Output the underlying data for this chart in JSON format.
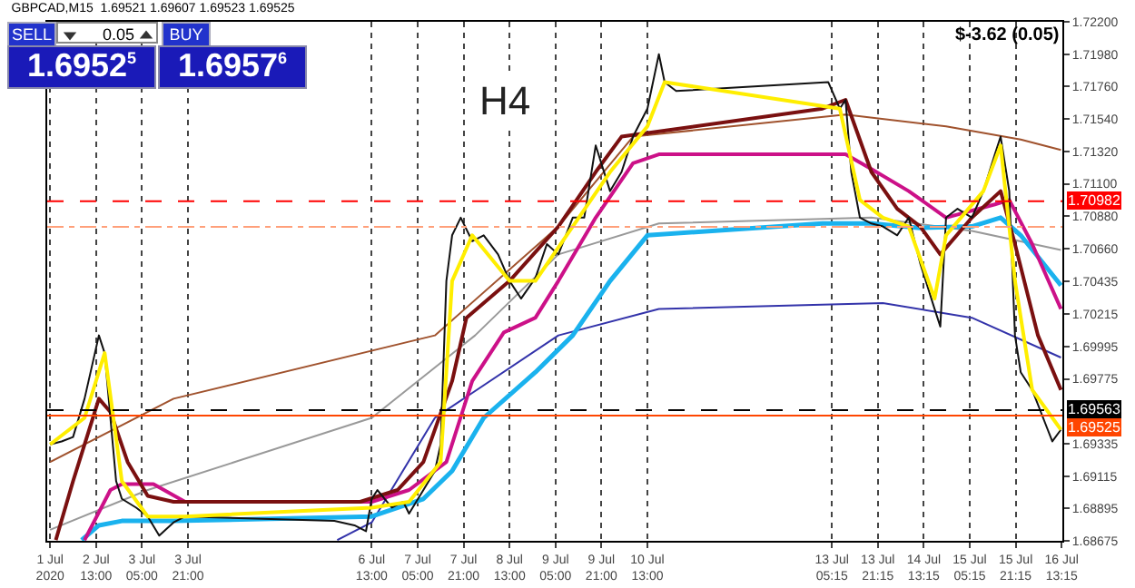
{
  "chart_data": {
    "type": "line",
    "title": "GBPCAD,M15  1.69521 1.69607 1.69523 1.69525",
    "annotations": [
      "H4",
      "$-3.62 (0.05)",
      "SELL",
      "0.05",
      "BUY",
      "1.6952$^{5}$",
      "1.6957$^{6}$"
    ],
    "series": [
      {
        "color": "#a0522d",
        "x": [
          "2020-07-01T21:00",
          "2020-07-03T16:00",
          "2020-07-07T11:00",
          "2020-07-09T06:00",
          "2020-07-10T08:00",
          "2020-07-13T10:00",
          "2020-07-14T21:00",
          "2020-07-15T23:00",
          "2020-07-16T13:00"
        ],
        "values": [
          1.6921,
          1.6964,
          1.7007,
          1.7081,
          1.7142,
          1.7157,
          1.7149,
          1.714,
          1.7133
        ]
      },
      {
        "color": "#999999",
        "x": [
          "2020-07-01T21:00",
          "2020-07-03T07:00",
          "2020-07-06T13:00",
          "2020-07-08T01:00",
          "2020-07-09T06:00",
          "2020-07-10T17:00",
          "2020-07-13T19:00",
          "2020-07-15T06:00",
          "2020-07-16T13:00"
        ],
        "values": [
          1.6875,
          1.6902,
          1.6951,
          1.7007,
          1.7062,
          1.7083,
          1.7087,
          1.7078,
          1.7065
        ]
      },
      {
        "color": "#3333aa",
        "x": [
          "2020-07-06T01:00",
          "2020-07-06T13:00",
          "2020-07-07T11:00",
          "2020-07-09T06:00",
          "2020-07-10T17:00",
          "2020-07-13T23:00",
          "2020-07-15T06:00",
          "2020-07-16T13:00"
        ],
        "values": [
          1.6868,
          1.688,
          1.6951,
          1.7007,
          1.7025,
          1.7029,
          1.7019,
          1.6992
        ]
      },
      {
        "color": "#1ab2ee",
        "x": [
          "2020-07-02T08:00",
          "2020-07-02T14:00",
          "2020-07-02T22:00",
          "2020-07-03T16:00",
          "2020-07-06T13:00",
          "2020-07-07T07:00",
          "2020-07-07T17:00",
          "2020-07-08T04:00",
          "2020-07-08T22:00",
          "2020-07-09T11:00",
          "2020-07-10T00:00",
          "2020-07-10T13:00",
          "2020-07-13T02:00",
          "2020-07-13T19:00",
          "2020-07-14T12:00",
          "2020-07-15T06:00",
          "2020-07-15T16:00",
          "2020-07-15T23:00",
          "2020-07-16T13:00"
        ],
        "values": [
          1.6868,
          1.6878,
          1.6881,
          1.6881,
          1.6884,
          1.6896,
          1.6915,
          1.6951,
          1.6982,
          1.7007,
          1.7044,
          1.7075,
          1.7083,
          1.7083,
          1.708,
          1.7081,
          1.7087,
          1.7075,
          1.7041
        ]
      },
      {
        "color": "#cc1188",
        "x": [
          "2020-07-02T09:00",
          "2020-07-02T18:00",
          "2020-07-02T22:00",
          "2020-07-03T09:00",
          "2020-07-03T20:00",
          "2020-07-06T13:00",
          "2020-07-07T02:00",
          "2020-07-07T15:00",
          "2020-07-08T00:00",
          "2020-07-08T11:00",
          "2020-07-08T22:00",
          "2020-07-09T06:00",
          "2020-07-09T19:00",
          "2020-07-10T08:00",
          "2020-07-10T17:00",
          "2020-07-13T10:00",
          "2020-07-13T19:00",
          "2020-07-14T08:00",
          "2020-07-14T21:00",
          "2020-07-15T14:00",
          "2020-07-15T19:00",
          "2020-07-16T03:00",
          "2020-07-16T13:00"
        ],
        "values": [
          1.6868,
          1.6902,
          1.6906,
          1.6906,
          1.6894,
          1.6894,
          1.6902,
          1.6921,
          1.6976,
          1.7009,
          1.7019,
          1.7044,
          1.7087,
          1.7124,
          1.713,
          1.713,
          1.712,
          1.7105,
          1.7087,
          1.7096,
          1.7099,
          1.7069,
          1.7025
        ]
      },
      {
        "color": "#7a1010",
        "x": [
          "2020-07-01T23:00",
          "2020-07-02T05:00",
          "2020-07-02T14:00",
          "2020-07-02T18:00",
          "2020-07-03T00:00",
          "2020-07-03T07:00",
          "2020-07-03T16:00",
          "2020-07-06T09:00",
          "2020-07-06T22:00",
          "2020-07-07T07:00",
          "2020-07-07T17:00",
          "2020-07-07T22:00",
          "2020-07-08T13:00",
          "2020-07-09T06:00",
          "2020-07-09T19:00",
          "2020-07-10T04:00",
          "2020-07-13T02:00",
          "2020-07-13T10:00",
          "2020-07-13T19:00",
          "2020-07-14T04:00",
          "2020-07-14T12:00",
          "2020-07-14T19:00",
          "2020-07-15T06:00",
          "2020-07-15T16:00",
          "2020-07-15T21:00",
          "2020-07-16T05:00",
          "2020-07-16T13:00"
        ],
        "values": [
          1.6868,
          1.6908,
          1.6964,
          1.6955,
          1.6921,
          1.6898,
          1.6894,
          1.6894,
          1.6902,
          1.6921,
          1.6976,
          1.7019,
          1.7044,
          1.7081,
          1.7118,
          1.7142,
          1.7161,
          1.7167,
          1.7118,
          1.7093,
          1.7081,
          1.7062,
          1.7087,
          1.7105,
          1.7069,
          1.7007,
          1.697
        ]
      },
      {
        "color": "#111111",
        "x": [
          "2020-07-01T21:00",
          "2020-07-02T01:00",
          "2020-07-02T05:00",
          "2020-07-02T09:00",
          "2020-07-02T14:00",
          "2020-07-02T16:00",
          "2020-07-02T18:00",
          "2020-07-02T20:00",
          "2020-07-02T22:00",
          "2020-07-03T03:00",
          "2020-07-03T07:00",
          "2020-07-03T11:00",
          "2020-07-03T16:00",
          "2020-07-03T20:00",
          "2020-07-06T00:00",
          "2020-07-06T07:00",
          "2020-07-06T11:00",
          "2020-07-06T13:00",
          "2020-07-06T15:00",
          "2020-07-06T20:00",
          "2020-07-07T00:00",
          "2020-07-07T02:00",
          "2020-07-07T07:00",
          "2020-07-07T11:00",
          "2020-07-07T13:00",
          "2020-07-07T15:00",
          "2020-07-07T17:00",
          "2020-07-07T20:00",
          "2020-07-08T00:00",
          "2020-07-08T04:00",
          "2020-07-08T09:00",
          "2020-07-08T13:00",
          "2020-07-08T17:00",
          "2020-07-08T22:00",
          "2020-07-09T02:00",
          "2020-07-09T06:00",
          "2020-07-09T11:00",
          "2020-07-09T15:00",
          "2020-07-09T19:00",
          "2020-07-10T00:00",
          "2020-07-10T04:00",
          "2020-07-10T08:00",
          "2020-07-10T13:00",
          "2020-07-10T17:00",
          "2020-07-10T19:00",
          "2020-07-10T23:00",
          "2020-07-13T04:00",
          "2020-07-13T08:00",
          "2020-07-13T10:00",
          "2020-07-13T12:00",
          "2020-07-13T15:00",
          "2020-07-13T19:00",
          "2020-07-13T23:00",
          "2020-07-14T04:00",
          "2020-07-14T08:00",
          "2020-07-14T12:00",
          "2020-07-14T17:00",
          "2020-07-14T19:00",
          "2020-07-14T21:00",
          "2020-07-15T01:00",
          "2020-07-15T06:00",
          "2020-07-15T10:00",
          "2020-07-15T14:00",
          "2020-07-15T16:00",
          "2020-07-15T19:00",
          "2020-07-15T21:00",
          "2020-07-15T23:00",
          "2020-07-16T03:00",
          "2020-07-16T08:00",
          "2020-07-16T10:00",
          "2020-07-16T13:00"
        ],
        "values": [
          1.6933,
          1.6935,
          1.6938,
          1.6964,
          1.7007,
          1.6995,
          1.6951,
          1.6908,
          1.6896,
          1.689,
          1.6884,
          1.6871,
          1.688,
          1.6884,
          1.6881,
          1.6878,
          1.6874,
          1.6896,
          1.6902,
          1.689,
          1.6894,
          1.6886,
          1.6902,
          1.6915,
          1.6933,
          1.7044,
          1.7075,
          1.7087,
          1.7071,
          1.7075,
          1.7062,
          1.7044,
          1.7032,
          1.7046,
          1.7069,
          1.7062,
          1.7087,
          1.7087,
          1.7136,
          1.7105,
          1.7118,
          1.7142,
          1.7161,
          1.7198,
          1.7179,
          1.7173,
          1.7179,
          1.7161,
          1.7167,
          1.7118,
          1.7087,
          1.7083,
          1.7081,
          1.7075,
          1.7087,
          1.7056,
          1.7025,
          1.7013,
          1.7087,
          1.7093,
          1.7087,
          1.7105,
          1.713,
          1.7142,
          1.7105,
          1.7007,
          1.6982,
          1.697,
          1.6945,
          1.6935,
          1.6943
        ]
      },
      {
        "color": "#ffee00",
        "x": [
          "2020-07-01T21:00",
          "2020-07-02T09:00",
          "2020-07-02T16:00",
          "2020-07-02T22:00",
          "2020-07-03T07:00",
          "2020-07-03T20:00",
          "2020-07-06T13:00",
          "2020-07-07T02:00",
          "2020-07-07T13:00",
          "2020-07-07T17:00",
          "2020-07-08T00:00",
          "2020-07-08T13:00",
          "2020-07-08T22:00",
          "2020-07-09T11:00",
          "2020-07-10T00:00",
          "2020-07-10T13:00",
          "2020-07-10T19:00",
          "2020-07-13T08:00",
          "2020-07-13T15:00",
          "2020-07-13T23:00",
          "2020-07-14T08:00",
          "2020-07-14T17:00",
          "2020-07-14T21:00",
          "2020-07-15T10:00",
          "2020-07-15T16:00",
          "2020-07-15T21:00",
          "2020-07-16T03:00",
          "2020-07-16T13:00"
        ],
        "values": [
          1.6933,
          1.6951,
          1.6995,
          1.6908,
          1.6884,
          1.6884,
          1.689,
          1.6894,
          1.6921,
          1.7044,
          1.7075,
          1.7044,
          1.7044,
          1.7081,
          1.7118,
          1.7149,
          1.7179,
          1.7161,
          1.7099,
          1.7087,
          1.7081,
          1.7032,
          1.7075,
          1.7105,
          1.7136,
          1.7044,
          1.697,
          1.6943
        ]
      }
    ],
    "ref_lines": [
      {
        "axis": "y",
        "value": 1.70982,
        "label": "1.70982",
        "color": "#ff0000",
        "line_style": "dashed"
      },
      {
        "axis": "y",
        "value": 1.70808,
        "color": "#ffa07a",
        "line_style": "dashdot"
      },
      {
        "axis": "y",
        "value": 1.69563,
        "label": "1.69563",
        "color": "#000000",
        "line_style": "dashed"
      },
      {
        "axis": "y",
        "value": 1.69525,
        "label": "1.69525",
        "color": "#ff4500",
        "line_style": "solid"
      }
    ],
    "xlim": [
      "2020-07-01T20:00",
      "2020-07-16T13:30"
    ],
    "xticks": [
      {
        "value": "2020-07-01T21:00",
        "label": "1 Jul 2020"
      },
      {
        "value": "2020-07-02T13:00",
        "label": "2 Jul 13:00"
      },
      {
        "value": "2020-07-03T05:00",
        "label": "3 Jul 05:00"
      },
      {
        "value": "2020-07-03T21:00",
        "label": "3 Jul 21:00"
      },
      {
        "value": "2020-07-06T13:00",
        "label": "6 Jul 13:00"
      },
      {
        "value": "2020-07-07T05:00",
        "label": "7 Jul 05:00"
      },
      {
        "value": "2020-07-07T21:00",
        "label": "7 Jul 21:00"
      },
      {
        "value": "2020-07-08T13:00",
        "label": "8 Jul 13:00"
      },
      {
        "value": "2020-07-09T05:00",
        "label": "9 Jul 05:00"
      },
      {
        "value": "2020-07-09T21:00",
        "label": "9 Jul 21:00"
      },
      {
        "value": "2020-07-10T13:00",
        "label": "10 Jul 13:00"
      },
      {
        "value": "2020-07-13T05:15",
        "label": "13 Jul 05:15"
      },
      {
        "value": "2020-07-13T21:15",
        "label": "13 Jul 21:15"
      },
      {
        "value": "2020-07-14T13:15",
        "label": "14 Jul 13:15"
      },
      {
        "value": "2020-07-15T05:15",
        "label": "15 Jul 05:15"
      },
      {
        "value": "2020-07-15T21:15",
        "label": "15 Jul 21:15"
      },
      {
        "value": "2020-07-16T13:15",
        "label": "16 Jul 13:15"
      }
    ],
    "ylim": [
      1.68675,
      1.722
    ],
    "yticks": [
      {
        "value": 1.722,
        "label": "1.72200"
      },
      {
        "value": 1.7198,
        "label": "1.71980"
      },
      {
        "value": 1.7176,
        "label": "1.71760"
      },
      {
        "value": 1.7154,
        "label": "1.71540"
      },
      {
        "value": 1.7132,
        "label": "1.71320"
      },
      {
        "value": 1.711,
        "label": "1.71100"
      },
      {
        "value": 1.7088,
        "label": "1.70880"
      },
      {
        "value": 1.7066,
        "label": "1.70660"
      },
      {
        "value": 1.70435,
        "label": "1.70435"
      },
      {
        "value": 1.70215,
        "label": "1.70215"
      },
      {
        "value": 1.69995,
        "label": "1.69995"
      },
      {
        "value": 1.69775,
        "label": "1.69775"
      },
      {
        "value": 1.69335,
        "label": "1.69335"
      },
      {
        "value": 1.69115,
        "label": "1.69115"
      },
      {
        "value": 1.68895,
        "label": "1.68895"
      },
      {
        "value": 1.68675,
        "label": "1.68675"
      }
    ],
    "grid": "x",
    "line_style": "solid",
    "marker": "none"
  }
}
